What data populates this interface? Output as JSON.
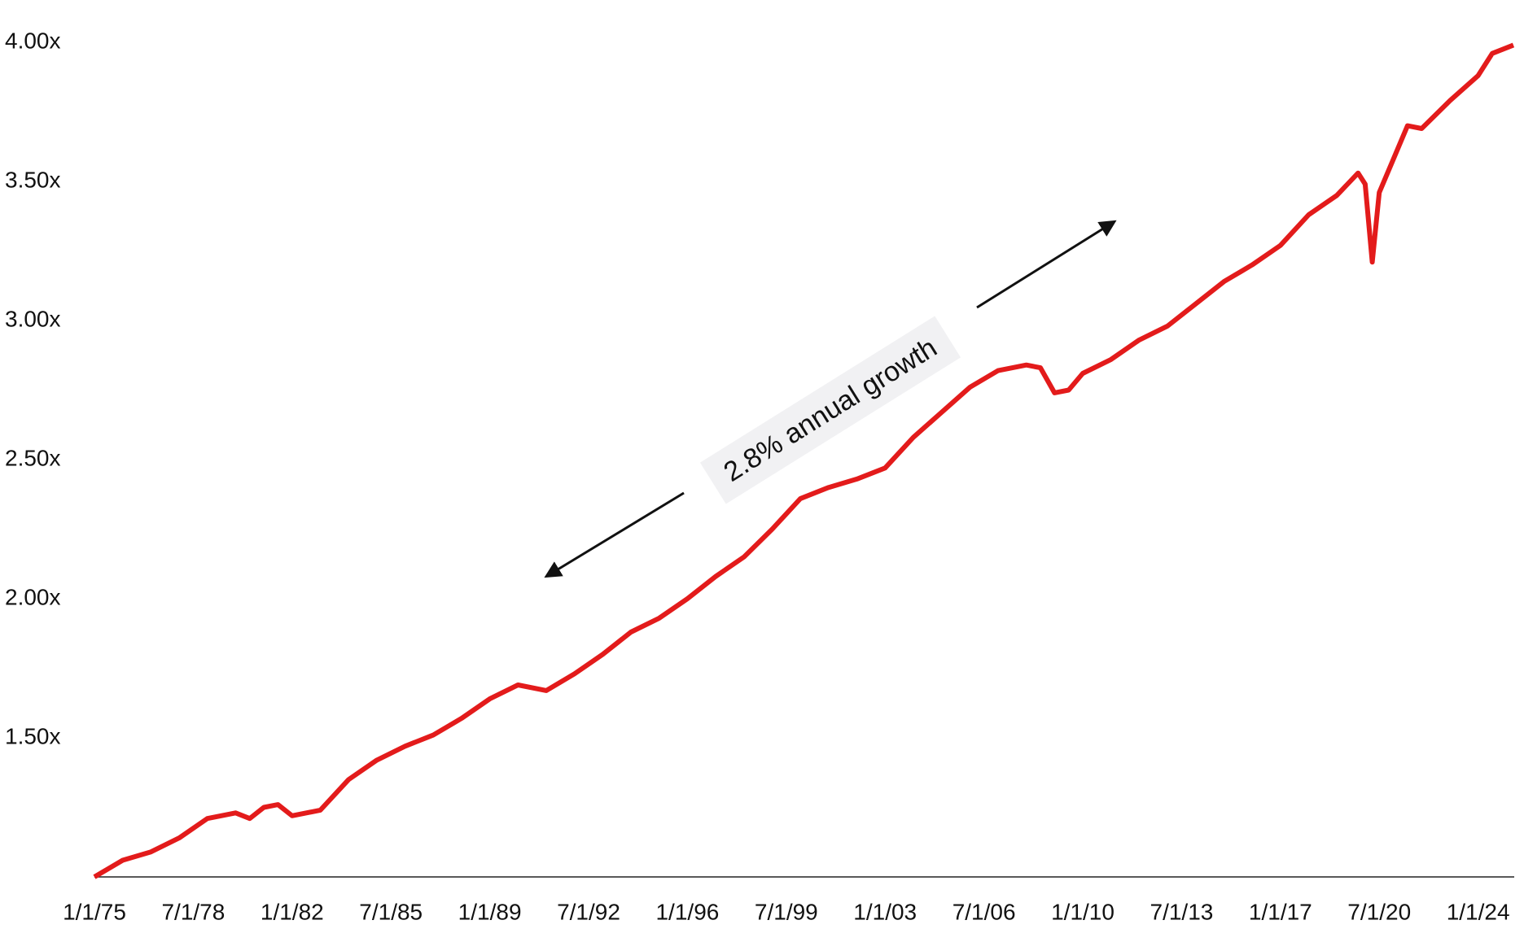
{
  "chart_data": {
    "type": "line",
    "annotation": "2.8% annual growth",
    "color": "#e31b1b",
    "x": [
      1975,
      1976,
      1977,
      1978,
      1979,
      1980,
      1980.5,
      1981,
      1981.5,
      1982,
      1983,
      1984,
      1985,
      1986,
      1987,
      1988,
      1989,
      1990,
      1991,
      1992,
      1993,
      1994,
      1995,
      1996,
      1997,
      1998,
      1999,
      2000,
      2001,
      2002,
      2003,
      2004,
      2005,
      2006,
      2007,
      2008,
      2008.5,
      2009,
      2009.5,
      2010,
      2011,
      2012,
      2013,
      2014,
      2015,
      2016,
      2017,
      2018,
      2019,
      2019.75,
      2020,
      2020.25,
      2020.5,
      2021,
      2021.5,
      2022,
      2023,
      2024,
      2024.5,
      2025.25
    ],
    "values": [
      1.0,
      1.06,
      1.09,
      1.14,
      1.21,
      1.23,
      1.21,
      1.25,
      1.26,
      1.22,
      1.24,
      1.35,
      1.42,
      1.47,
      1.51,
      1.57,
      1.64,
      1.69,
      1.67,
      1.73,
      1.8,
      1.88,
      1.93,
      2.0,
      2.08,
      2.15,
      2.25,
      2.36,
      2.4,
      2.43,
      2.47,
      2.58,
      2.67,
      2.76,
      2.82,
      2.84,
      2.83,
      2.74,
      2.75,
      2.81,
      2.86,
      2.93,
      2.98,
      3.06,
      3.14,
      3.2,
      3.27,
      3.38,
      3.45,
      3.53,
      3.49,
      3.21,
      3.46,
      3.58,
      3.7,
      3.69,
      3.79,
      3.88,
      3.96,
      3.99
    ],
    "xlim": [
      1975,
      2025.25
    ],
    "xticks": [
      {
        "value": 1975,
        "label": "1/1/75"
      },
      {
        "value": 1978.5,
        "label": "7/1/78"
      },
      {
        "value": 1982,
        "label": "1/1/82"
      },
      {
        "value": 1985.5,
        "label": "7/1/85"
      },
      {
        "value": 1989,
        "label": "1/1/89"
      },
      {
        "value": 1992.5,
        "label": "7/1/92"
      },
      {
        "value": 1996,
        "label": "1/1/96"
      },
      {
        "value": 1999.5,
        "label": "7/1/99"
      },
      {
        "value": 2003,
        "label": "1/1/03"
      },
      {
        "value": 2006.5,
        "label": "7/1/06"
      },
      {
        "value": 2010,
        "label": "1/1/10"
      },
      {
        "value": 2013.5,
        "label": "7/1/13"
      },
      {
        "value": 2017,
        "label": "1/1/17"
      },
      {
        "value": 2020.5,
        "label": "7/1/20"
      },
      {
        "value": 2024,
        "label": "1/1/24"
      }
    ],
    "ylim": [
      1,
      4
    ],
    "yticks": [
      {
        "value": 1.5,
        "label": "1.50x"
      },
      {
        "value": 2,
        "label": "2.00x"
      },
      {
        "value": 2.5,
        "label": "2.50x"
      },
      {
        "value": 3,
        "label": "3.00x"
      },
      {
        "value": 3.5,
        "label": "3.50x"
      },
      {
        "value": 4,
        "label": "4.00x"
      }
    ],
    "grid": false
  }
}
